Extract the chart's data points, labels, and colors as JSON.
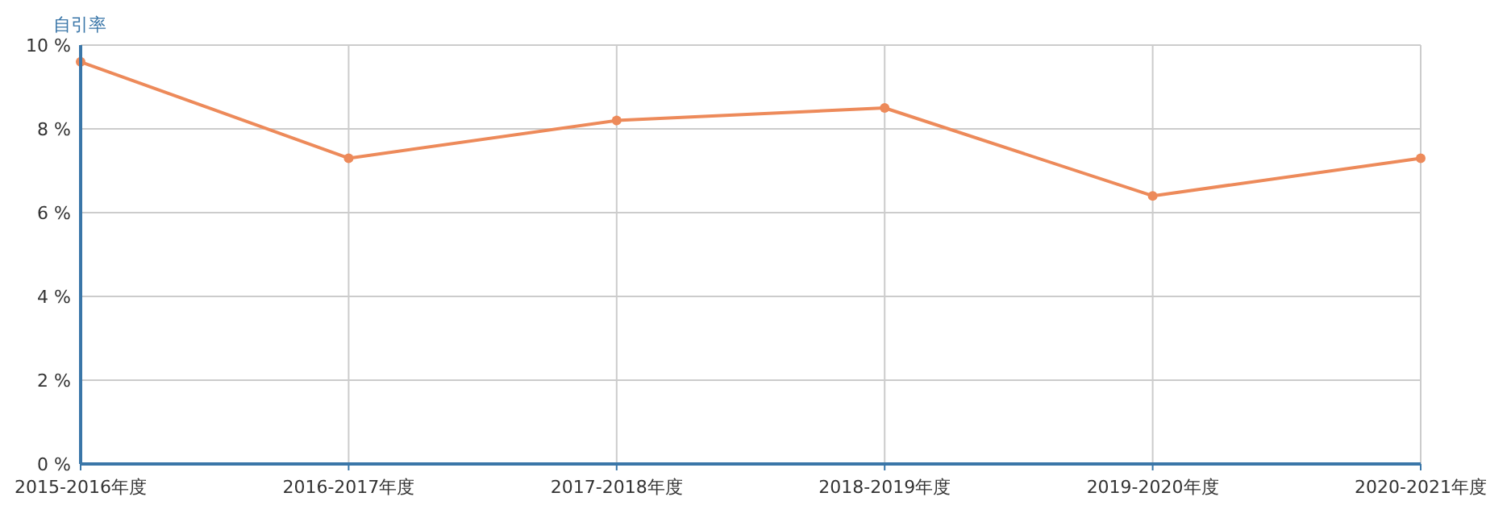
{
  "chart_data": {
    "type": "line",
    "ylabel": "自引率",
    "categories": [
      "2015-2016年度",
      "2016-2017年度",
      "2017-2018年度",
      "2018-2019年度",
      "2019-2020年度",
      "2020-2021年度"
    ],
    "series": [
      {
        "color": "#ed8a5a",
        "values": [
          9.6,
          7.3,
          8.2,
          8.5,
          6.4,
          7.3
        ]
      }
    ],
    "ylim": [
      0,
      10
    ],
    "yticks": [
      {
        "value": 0,
        "label": "0 %"
      },
      {
        "value": 2,
        "label": "2 %"
      },
      {
        "value": 4,
        "label": "4 %"
      },
      {
        "value": 6,
        "label": "6 %"
      },
      {
        "value": 8,
        "label": "8 %"
      },
      {
        "value": 10,
        "label": "10 %"
      }
    ],
    "grid": true,
    "marker": "circle",
    "line_style": "solid"
  }
}
